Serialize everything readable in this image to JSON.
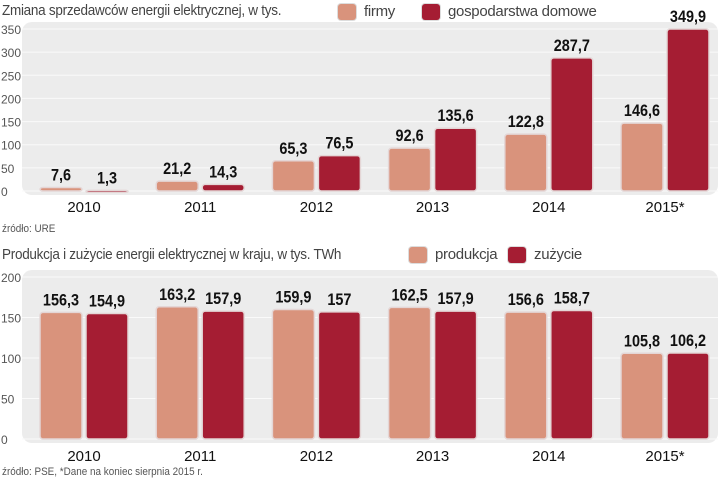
{
  "colors": {
    "firmy": "#d9937c",
    "gospodarstwa": "#a51d33",
    "panel": "#ececec"
  },
  "chart_data": [
    {
      "type": "bar",
      "title": "Zmiana sprzedawców energii elektrycznej, w tys.",
      "categories": [
        "2010",
        "2011",
        "2012",
        "2013",
        "2014",
        "2015*"
      ],
      "series": [
        {
          "name": "firmy",
          "values": [
            7.6,
            21.2,
            65.3,
            92.6,
            122.8,
            146.6
          ],
          "labels": [
            "7,6",
            "21,2",
            "65,3",
            "92,6",
            "122,8",
            "146,6"
          ]
        },
        {
          "name": "gospodarstwa domowe",
          "values": [
            1.3,
            14.3,
            76.5,
            135.6,
            287.7,
            349.9
          ],
          "labels": [
            "1,3",
            "14,3",
            "76,5",
            "135,6",
            "287,7",
            "349,9"
          ]
        }
      ],
      "yticks": [
        0,
        50,
        100,
        150,
        200,
        250,
        300,
        350
      ],
      "ylim": [
        0,
        350
      ],
      "grid": true,
      "legend": "top",
      "source": "źródło: URE"
    },
    {
      "type": "bar",
      "title": "Produkcja i zużycie energii elektrycznej w kraju, w tys. TWh",
      "categories": [
        "2010",
        "2011",
        "2012",
        "2013",
        "2014",
        "2015*"
      ],
      "series": [
        {
          "name": "produkcja",
          "values": [
            156.3,
            163.2,
            159.9,
            162.5,
            156.6,
            105.8
          ],
          "labels": [
            "156,3",
            "163,2",
            "159,9",
            "162,5",
            "156,6",
            "105,8"
          ]
        },
        {
          "name": "zużycie",
          "values": [
            154.9,
            157.9,
            157,
            157.9,
            158.7,
            106.2
          ],
          "labels": [
            "154,9",
            "157,9",
            "157",
            "157,9",
            "158,7",
            "106,2"
          ]
        }
      ],
      "yticks": [
        0,
        50,
        100,
        150,
        200
      ],
      "ylim": [
        0,
        200
      ],
      "grid": true,
      "legend": "top",
      "source": "źródło: PSE, *Dane na koniec sierpnia 2015 r."
    }
  ]
}
